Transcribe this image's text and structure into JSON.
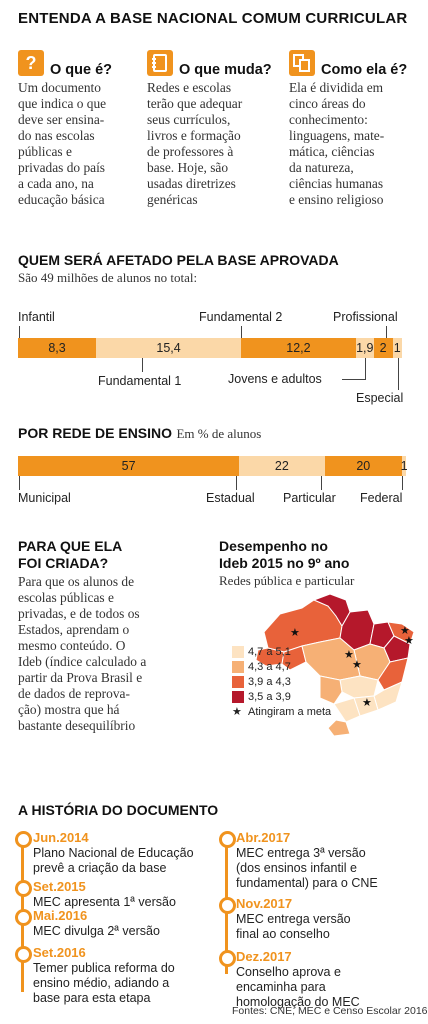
{
  "title": "ENTENDA A BASE NACIONAL COMUM CURRICULAR",
  "columns": [
    {
      "icon": "question-icon",
      "heading": "O que é?",
      "lines": [
        "Um documento",
        "que indica o que",
        "deve ser ensina-",
        "do nas escolas",
        "públicas e",
        "privadas do país",
        "a cada ano, na",
        "educação básica"
      ]
    },
    {
      "icon": "notebook-icon",
      "heading": "O que muda?",
      "lines": [
        "Redes e escolas",
        "terão que adequar",
        "seus currículos,",
        "livros e formação",
        "de professores à",
        "base. Hoje, são",
        "usadas diretrizes",
        "genéricas"
      ]
    },
    {
      "icon": "document-icon",
      "heading": "Como ela é?",
      "lines": [
        "Ela é dividida em",
        "cinco áreas do",
        "conhecimento:",
        "linguagens, mate-",
        "mática, ciências",
        "da natureza,",
        "ciências humanas",
        "e ensino religioso"
      ]
    }
  ],
  "affected": {
    "title": "QUEM SERÁ AFETADO PELA BASE APROVADA",
    "subtitle": "São 49 milhões de alunos no total:",
    "segments": [
      {
        "name": "Infantil",
        "value": 8.3,
        "label": "8,3",
        "color": "#f0931e"
      },
      {
        "name": "Fundamental 1",
        "value": 15.4,
        "label": "15,4",
        "color": "#fbd8a8"
      },
      {
        "name": "Fundamental 2",
        "value": 12.2,
        "label": "12,2",
        "color": "#f0931e"
      },
      {
        "name": "Jovens e adultos",
        "value": 1.9,
        "label": "1,9",
        "color": "#fbd8a8"
      },
      {
        "name": "Profissional",
        "value": 2,
        "label": "2",
        "color": "#f0931e"
      },
      {
        "name": "Especial",
        "value": 1,
        "label": "1",
        "color": "#fbd8a8"
      }
    ]
  },
  "network": {
    "title": "POR REDE DE ENSINO",
    "unit": "Em % de alunos",
    "segments": [
      {
        "name": "Municipal",
        "value": 57,
        "label": "57",
        "color": "#f0931e"
      },
      {
        "name": "Estadual",
        "value": 22,
        "label": "22",
        "color": "#fbd8a8"
      },
      {
        "name": "Particular",
        "value": 20,
        "label": "20",
        "color": "#f0931e"
      },
      {
        "name": "Federal",
        "value": 1,
        "label": "1",
        "color": "#fbd8a8"
      }
    ]
  },
  "purpose": {
    "title_lines": [
      "PARA QUE ELA",
      "FOI CRIADA?"
    ],
    "lines": [
      "Para que os alunos de",
      "escolas públicas e",
      "privadas, e de todos os",
      "Estados, aprendam o",
      "mesmo conteúdo. O",
      "Ideb (índice calculado a",
      "partir da Prova Brasil e",
      "de dados de reprova-",
      "ção) mostra que há",
      "bastante desequilíbrio"
    ]
  },
  "map": {
    "title_lines": [
      "Desempenho no",
      "Ideb 2015 no 9º ano"
    ],
    "subtitle": "Redes pública e particular",
    "legend": [
      {
        "label": "4,7 a 5,1",
        "color": "#fde3c2"
      },
      {
        "label": "4,3 a 4,7",
        "color": "#f6b075"
      },
      {
        "label": "3,9 a 4,3",
        "color": "#e8623a"
      },
      {
        "label": "3,5 a 3,9",
        "color": "#b5182b"
      }
    ],
    "star_label": "Atingiram a meta"
  },
  "history": {
    "title": "A HISTÓRIA DO DOCUMENTO",
    "left": [
      {
        "date": "Jun.2014",
        "lines": [
          "Plano Nacional de Educação",
          "prevê a criação da base"
        ]
      },
      {
        "date": "Set.2015",
        "lines": [
          "MEC apresenta 1ª versão"
        ]
      },
      {
        "date": "Mai.2016",
        "lines": [
          "MEC divulga 2ª versão"
        ]
      },
      {
        "date": "Set.2016",
        "lines": [
          "Temer publica reforma do",
          "ensino médio, adiando a",
          "base para esta etapa"
        ]
      }
    ],
    "right": [
      {
        "date": "Abr.2017",
        "lines": [
          "MEC entrega 3ª versão",
          "(dos ensinos infantil e",
          "fundamental) para o CNE"
        ]
      },
      {
        "date": "Nov.2017",
        "lines": [
          "MEC entrega versão",
          "final  ao conselho"
        ]
      },
      {
        "date": "Dez.2017",
        "lines": [
          "Conselho aprova e",
          "encaminha para",
          "homologação do MEC"
        ]
      }
    ]
  },
  "source": "Fontes: CNE, MEC e Censo Escolar 2016"
}
